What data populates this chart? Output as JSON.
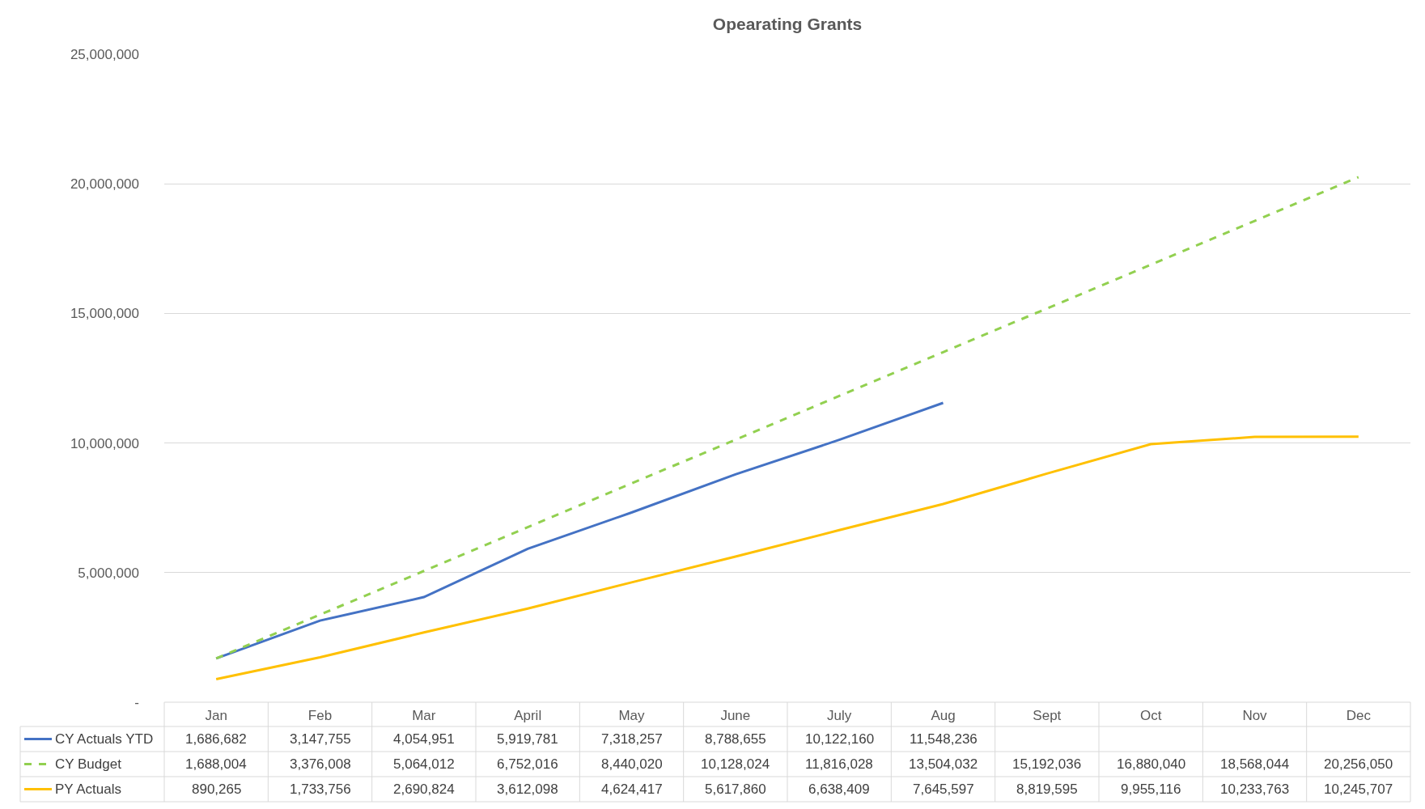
{
  "chart_data": {
    "type": "line",
    "title": "Opearating Grants",
    "categories": [
      "Jan",
      "Feb",
      "Mar",
      "April",
      "May",
      "June",
      "July",
      "Aug",
      "Sept",
      "Oct",
      "Nov",
      "Dec"
    ],
    "series": [
      {
        "name": "CY Actuals YTD",
        "color": "#4472c4",
        "line_style": "solid",
        "values": [
          1686682,
          3147755,
          4054951,
          5919781,
          7318257,
          8788655,
          10122160,
          11548236,
          null,
          null,
          null,
          null
        ],
        "value_labels": [
          "1,686,682",
          "3,147,755",
          "4,054,951",
          "5,919,781",
          "7,318,257",
          "8,788,655",
          "10,122,160",
          "11,548,236",
          null,
          null,
          null,
          null
        ]
      },
      {
        "name": "CY Budget",
        "color": "#92d050",
        "line_style": "dashed",
        "values": [
          1688004,
          3376008,
          5064012,
          6752016,
          8440020,
          10128024,
          11816028,
          13504032,
          15192036,
          16880040,
          18568044,
          20256050
        ],
        "value_labels": [
          "1,688,004",
          "3,376,008",
          "5,064,012",
          "6,752,016",
          "8,440,020",
          "10,128,024",
          "11,816,028",
          "13,504,032",
          "15,192,036",
          "16,880,040",
          "18,568,044",
          "20,256,050"
        ]
      },
      {
        "name": "PY Actuals",
        "color": "#ffc000",
        "line_style": "solid",
        "values": [
          890265,
          1733756,
          2690824,
          3612098,
          4624417,
          5617860,
          6638409,
          7645597,
          8819595,
          9955116,
          10233763,
          10245707
        ],
        "value_labels": [
          "890,265",
          "1,733,756",
          "2,690,824",
          "3,612,098",
          "4,624,417",
          "5,617,860",
          "6,638,409",
          "7,645,597",
          "8,819,595",
          "9,955,116",
          "10,233,763",
          "10,245,707"
        ]
      }
    ],
    "ylim": [
      0,
      25000000
    ],
    "yticks": [
      {
        "value": 0,
        "label": "-"
      },
      {
        "value": 5000000,
        "label": "5,000,000"
      },
      {
        "value": 10000000,
        "label": "10,000,000"
      },
      {
        "value": 15000000,
        "label": "15,000,000"
      },
      {
        "value": 20000000,
        "label": "20,000,000"
      },
      {
        "value": 25000000,
        "label": "25,000,000"
      }
    ],
    "grid": "y",
    "legend": "bottom left",
    "marker": "none"
  }
}
